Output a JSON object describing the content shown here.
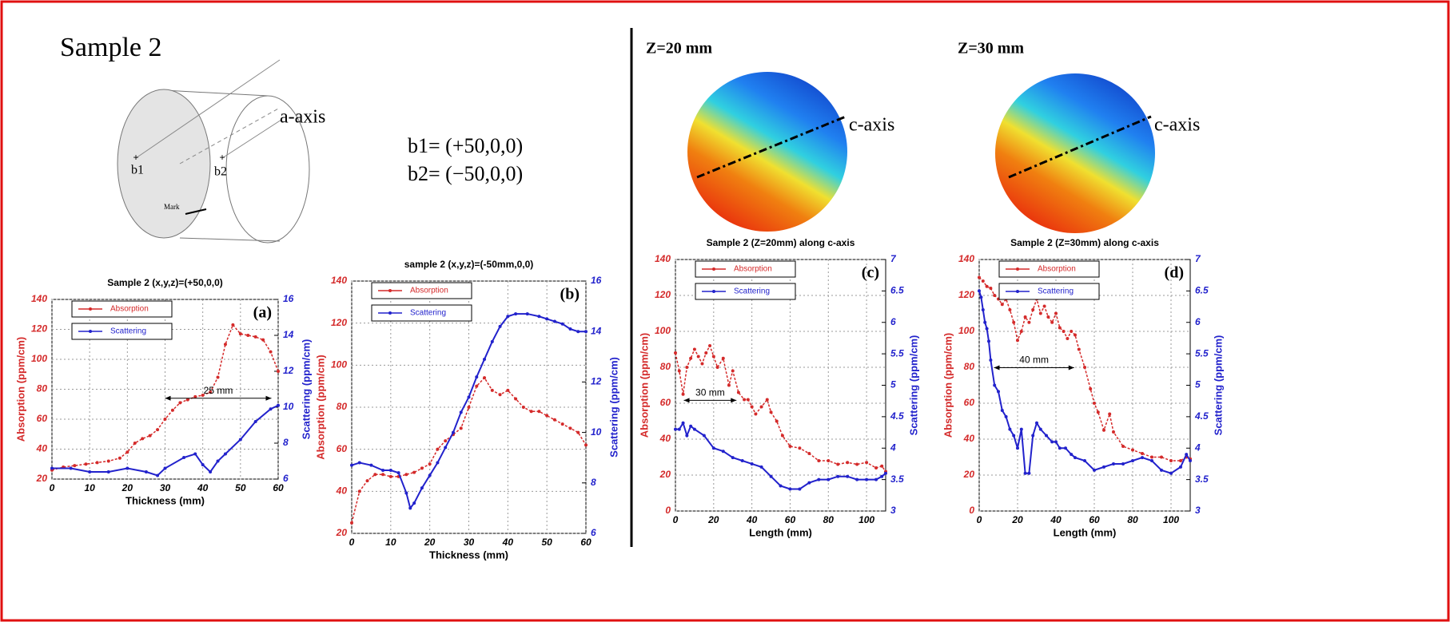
{
  "figure": {
    "sample_title": "Sample 2",
    "diagram": {
      "axis_label": "a-axis",
      "points": [
        "b1",
        "b2"
      ],
      "mark": "Mark"
    },
    "coordinates": [
      "b1= (+50,0,0)",
      "b2= (−50,0,0)"
    ],
    "maps": [
      {
        "label": "Z=20 mm",
        "axis_label": "c-axis"
      },
      {
        "label": "Z=30 mm",
        "axis_label": "c-axis"
      }
    ]
  },
  "chart_data": [
    {
      "type": "line",
      "title": "Sample 2 (x,y,z)=(+50,0,0)",
      "panel_label": "(a)",
      "xlabel": "Thickness (mm)",
      "ylabel": "Absorption (ppm/cm)",
      "y2label": "Scattering (ppm/cm)",
      "annotation": "25 mm",
      "legend": "upper left",
      "grid": true,
      "xlim": [
        0,
        60
      ],
      "xticks": [
        0,
        10,
        20,
        30,
        40,
        50,
        60
      ],
      "ylim": [
        20,
        140
      ],
      "yticks": [
        20,
        40,
        60,
        80,
        100,
        120,
        140
      ],
      "y2lim": [
        6,
        16
      ],
      "y2ticks": [
        6,
        8,
        10,
        12,
        14,
        16
      ],
      "series": [
        {
          "name": "Absorption",
          "color": "#d42a2a",
          "axis": "y",
          "x": [
            0,
            3,
            6,
            9,
            12,
            15,
            18,
            20,
            22,
            24,
            26,
            28,
            30,
            32,
            34,
            36,
            38,
            40,
            42,
            44,
            46,
            48,
            50,
            52,
            54,
            56,
            58,
            60
          ],
          "values": [
            26,
            28,
            29,
            30,
            31,
            32,
            34,
            38,
            44,
            47,
            49,
            53,
            60,
            66,
            71,
            73,
            75,
            76,
            78,
            88,
            110,
            123,
            117,
            116,
            115,
            113,
            105,
            92
          ]
        },
        {
          "name": "Scattering",
          "color": "#2222cc",
          "axis": "y2",
          "x": [
            0,
            5,
            10,
            15,
            20,
            25,
            28,
            30,
            35,
            38,
            40,
            42,
            44,
            46,
            50,
            54,
            58,
            60
          ],
          "values": [
            6.6,
            6.6,
            6.4,
            6.4,
            6.6,
            6.4,
            6.2,
            6.6,
            7.2,
            7.4,
            6.8,
            6.4,
            7,
            7.4,
            8.2,
            9.2,
            9.9,
            10.1
          ]
        }
      ]
    },
    {
      "type": "line",
      "title": "sample 2 (x,y,z)=(-50mm,0,0)",
      "panel_label": "(b)",
      "xlabel": "Thickness (mm)",
      "ylabel": "Absorption (ppm/cm)",
      "y2label": "Scattering (ppm/cm)",
      "legend": "upper left",
      "grid": true,
      "xlim": [
        0,
        60
      ],
      "xticks": [
        0,
        10,
        20,
        30,
        40,
        50,
        60
      ],
      "ylim": [
        20,
        140
      ],
      "yticks": [
        20,
        40,
        60,
        80,
        100,
        120,
        140
      ],
      "y2lim": [
        6,
        16
      ],
      "y2ticks": [
        6,
        8,
        10,
        12,
        14,
        16
      ],
      "series": [
        {
          "name": "Absorption",
          "color": "#d42a2a",
          "axis": "y",
          "x": [
            0,
            2,
            4,
            6,
            8,
            10,
            12,
            14,
            16,
            18,
            20,
            22,
            24,
            26,
            28,
            30,
            32,
            34,
            36,
            38,
            40,
            42,
            44,
            46,
            48,
            50,
            52,
            54,
            56,
            58,
            60
          ],
          "values": [
            25,
            40,
            45,
            48,
            48,
            47,
            47,
            48,
            49,
            51,
            53,
            60,
            64,
            67,
            70,
            80,
            90,
            94,
            88,
            86,
            88,
            84,
            80,
            78,
            78,
            76,
            74,
            72,
            70,
            68,
            62
          ]
        },
        {
          "name": "Scattering",
          "color": "#2222cc",
          "axis": "y2",
          "x": [
            0,
            2,
            5,
            8,
            10,
            12,
            14,
            15,
            16,
            18,
            20,
            22,
            24,
            26,
            28,
            30,
            32,
            34,
            36,
            38,
            40,
            42,
            45,
            48,
            50,
            52,
            54,
            56,
            58,
            60
          ],
          "values": [
            8.7,
            8.8,
            8.7,
            8.5,
            8.5,
            8.4,
            7.6,
            7,
            7.2,
            7.8,
            8.3,
            8.8,
            9.4,
            10,
            10.8,
            11.4,
            12.2,
            12.9,
            13.6,
            14.2,
            14.6,
            14.7,
            14.7,
            14.6,
            14.5,
            14.4,
            14.3,
            14.1,
            14,
            14
          ]
        }
      ]
    },
    {
      "type": "line",
      "title": "Sample 2 (Z=20mm) along c-axis",
      "panel_label": "(c)",
      "xlabel": "Length (mm)",
      "ylabel": "Absorption (ppm/cm)",
      "y2label": "Scattering (ppm/cm)",
      "annotation": "30 mm",
      "legend": "upper left",
      "grid": true,
      "xlim": [
        0,
        110
      ],
      "xticks": [
        0,
        20,
        40,
        60,
        80,
        100
      ],
      "ylim": [
        0,
        140
      ],
      "yticks": [
        0,
        20,
        40,
        60,
        80,
        100,
        120,
        140
      ],
      "y2lim": [
        3,
        7
      ],
      "y2ticks": [
        3,
        3.5,
        4,
        4.5,
        5,
        5.5,
        6,
        6.5,
        7
      ],
      "series": [
        {
          "name": "Absorption",
          "color": "#d42a2a",
          "axis": "y",
          "x": [
            0,
            2,
            4,
            6,
            8,
            10,
            12,
            14,
            16,
            18,
            20,
            22,
            25,
            28,
            30,
            33,
            36,
            38,
            40,
            42,
            45,
            48,
            50,
            53,
            56,
            60,
            65,
            70,
            75,
            80,
            85,
            90,
            95,
            100,
            105,
            108,
            110
          ],
          "values": [
            88,
            78,
            65,
            80,
            85,
            90,
            86,
            82,
            88,
            92,
            86,
            80,
            85,
            70,
            78,
            66,
            62,
            62,
            58,
            54,
            58,
            62,
            55,
            50,
            42,
            36,
            35,
            32,
            28,
            28,
            26,
            27,
            26,
            27,
            24,
            25,
            22
          ]
        },
        {
          "name": "Scattering",
          "color": "#2222cc",
          "axis": "y2",
          "x": [
            0,
            2,
            4,
            6,
            8,
            10,
            15,
            20,
            25,
            30,
            35,
            40,
            45,
            50,
            55,
            60,
            65,
            70,
            75,
            80,
            85,
            90,
            95,
            100,
            105,
            108,
            110
          ],
          "values": [
            4.3,
            4.3,
            4.4,
            4.2,
            4.35,
            4.3,
            4.2,
            4,
            3.95,
            3.85,
            3.8,
            3.75,
            3.7,
            3.55,
            3.4,
            3.35,
            3.35,
            3.45,
            3.5,
            3.5,
            3.55,
            3.55,
            3.5,
            3.5,
            3.5,
            3.55,
            3.6
          ]
        }
      ]
    },
    {
      "type": "line",
      "title": "Sample 2 (Z=30mm) along c-axis",
      "panel_label": "(d)",
      "xlabel": "Length (mm)",
      "ylabel": "Absorption (ppm/cm)",
      "y2label": "Scattering (ppm/cm)",
      "annotation": "40 mm",
      "legend": "upper left",
      "grid": true,
      "xlim": [
        0,
        110
      ],
      "xticks": [
        0,
        20,
        40,
        60,
        80,
        100
      ],
      "ylim": [
        0,
        140
      ],
      "yticks": [
        0,
        20,
        40,
        60,
        80,
        100,
        120,
        140
      ],
      "y2lim": [
        3,
        7
      ],
      "y2ticks": [
        3,
        3.5,
        4,
        4.5,
        5,
        5.5,
        6,
        6.5,
        7
      ],
      "series": [
        {
          "name": "Absorption",
          "color": "#d42a2a",
          "axis": "y",
          "x": [
            0,
            2,
            4,
            6,
            8,
            10,
            12,
            14,
            16,
            18,
            20,
            22,
            24,
            26,
            28,
            30,
            32,
            34,
            36,
            38,
            40,
            42,
            44,
            46,
            48,
            50,
            52,
            55,
            58,
            60,
            62,
            65,
            68,
            70,
            75,
            80,
            85,
            90,
            95,
            100,
            105,
            108,
            110
          ],
          "values": [
            130,
            128,
            125,
            124,
            120,
            118,
            115,
            118,
            112,
            105,
            95,
            100,
            108,
            105,
            112,
            118,
            110,
            114,
            108,
            105,
            110,
            102,
            100,
            96,
            100,
            98,
            90,
            80,
            68,
            60,
            55,
            45,
            54,
            44,
            36,
            34,
            32,
            30,
            30,
            28,
            28,
            30,
            29
          ]
        },
        {
          "name": "Scattering",
          "color": "#2222cc",
          "axis": "y2",
          "x": [
            0,
            1,
            2,
            3,
            4,
            5,
            6,
            8,
            10,
            12,
            14,
            16,
            18,
            20,
            22,
            24,
            26,
            28,
            30,
            32,
            35,
            38,
            40,
            42,
            45,
            48,
            50,
            55,
            60,
            65,
            70,
            75,
            80,
            85,
            90,
            95,
            100,
            105,
            108,
            110
          ],
          "values": [
            6.5,
            6.4,
            6.2,
            6,
            5.9,
            5.7,
            5.4,
            5,
            4.9,
            4.6,
            4.5,
            4.3,
            4.2,
            4,
            4.3,
            3.6,
            3.6,
            4.2,
            4.4,
            4.3,
            4.2,
            4.1,
            4.1,
            4,
            4,
            3.9,
            3.85,
            3.8,
            3.65,
            3.7,
            3.75,
            3.75,
            3.8,
            3.85,
            3.8,
            3.65,
            3.6,
            3.7,
            3.9,
            3.8
          ]
        }
      ]
    }
  ]
}
